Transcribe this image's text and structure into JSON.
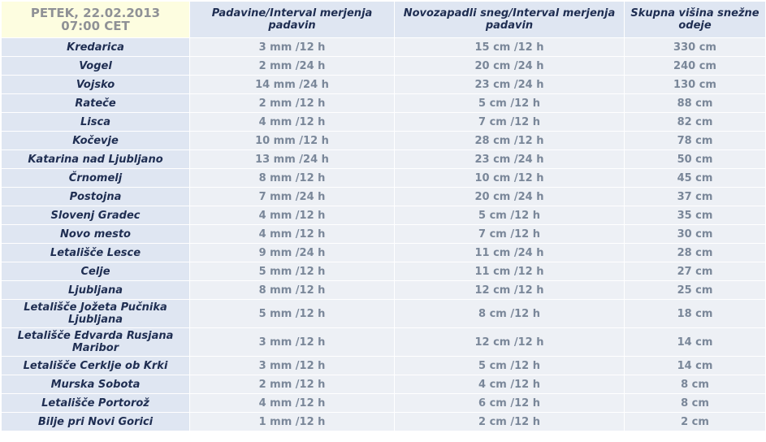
{
  "table": {
    "header": [
      "PETEK, 22.02.2013 07:00 CET",
      "Padavine/Interval merjenja padavin",
      "Novozapadli sneg/Interval merjenja padavin",
      "Skupna višina snežne odeje"
    ],
    "rows": [
      [
        "Kredarica",
        "3 mm /12 h",
        "15 cm /12 h",
        "330 cm"
      ],
      [
        "Vogel",
        "2 mm /24 h",
        "20 cm /24 h",
        "240 cm"
      ],
      [
        "Vojsko",
        "14 mm /24 h",
        "23 cm /24 h",
        "130 cm"
      ],
      [
        "Rateče",
        "2 mm /12 h",
        "5 cm /12 h",
        "88 cm"
      ],
      [
        "Lisca",
        "4 mm /12 h",
        "7 cm /12 h",
        "82 cm"
      ],
      [
        "Kočevje",
        "10 mm /12 h",
        "28 cm /12 h",
        "78 cm"
      ],
      [
        "Katarina nad Ljubljano",
        "13 mm /24 h",
        "23 cm /24 h",
        "50 cm"
      ],
      [
        "Črnomelj",
        "8 mm /12 h",
        "10 cm /12 h",
        "45 cm"
      ],
      [
        "Postojna",
        "7 mm /24 h",
        "20 cm /24 h",
        "37 cm"
      ],
      [
        "Slovenj Gradec",
        "4 mm /12 h",
        "5 cm /12 h",
        "35 cm"
      ],
      [
        "Novo mesto",
        "4 mm /12 h",
        "7 cm /12 h",
        "30 cm"
      ],
      [
        "Letališče Lesce",
        "9 mm /24 h",
        "11 cm /24 h",
        "28 cm"
      ],
      [
        "Celje",
        "5 mm /12 h",
        "11 cm /12 h",
        "27 cm"
      ],
      [
        "Ljubljana",
        "8 mm /12 h",
        "12 cm /12 h",
        "25 cm"
      ],
      [
        "Letališče Jožeta Pučnika Ljubljana",
        "5 mm /12 h",
        "8 cm /12 h",
        "18 cm"
      ],
      [
        "Letališče Edvarda Rusjana Maribor",
        "3 mm /12 h",
        "12 cm /12 h",
        "14 cm"
      ],
      [
        "Letališče Cerklje ob Krki",
        "3 mm /12 h",
        "5 cm /12 h",
        "14 cm"
      ],
      [
        "Murska Sobota",
        "2 mm /12 h",
        "4 cm /12 h",
        "8 cm"
      ],
      [
        "Letališče Portorož",
        "4 mm /12 h",
        "6 cm /12 h",
        "8 cm"
      ],
      [
        "Bilje pri Novi Gorici",
        "1 mm /12 h",
        "2 cm /12 h",
        "2 cm"
      ]
    ]
  }
}
